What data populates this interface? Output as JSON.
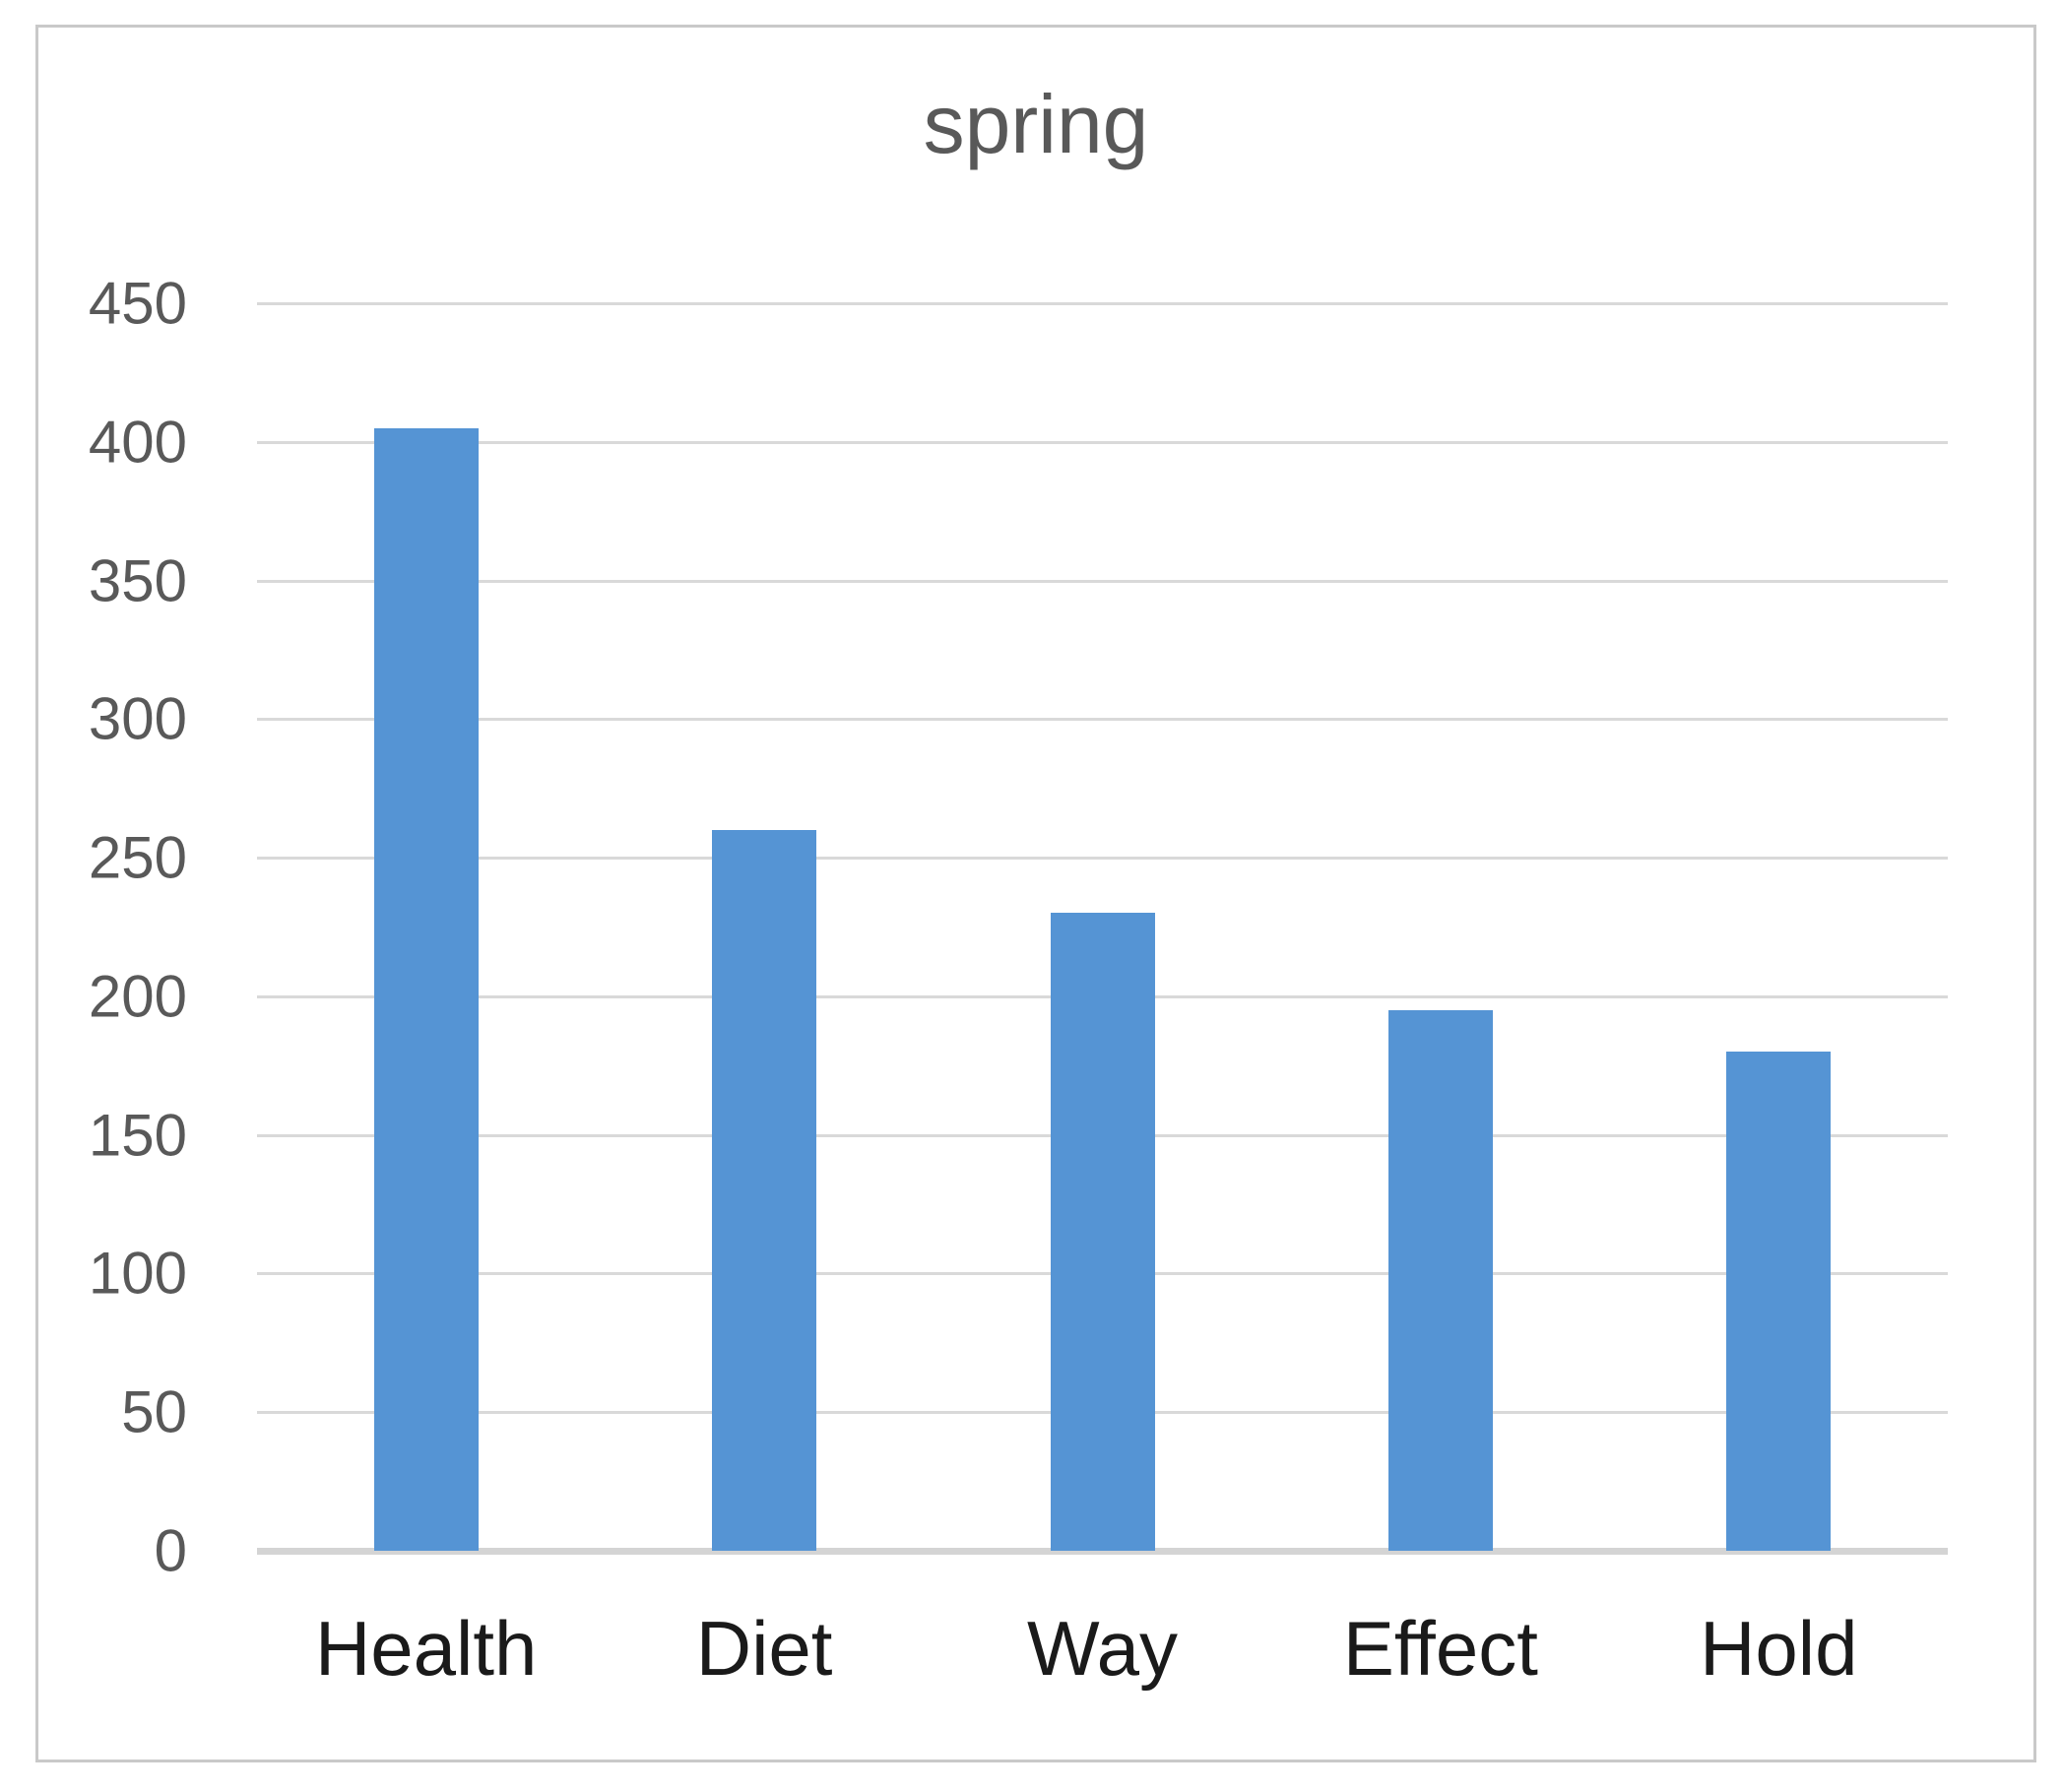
{
  "chart_data": {
    "type": "bar",
    "title": "spring",
    "categories": [
      "Health",
      "Diet",
      "Way",
      "Effect",
      "Hold"
    ],
    "values": [
      405,
      260,
      230,
      195,
      180
    ],
    "xlabel": "",
    "ylabel": "",
    "ylim": [
      0,
      450
    ],
    "y_ticks": [
      0,
      50,
      100,
      150,
      200,
      250,
      300,
      350,
      400,
      450
    ],
    "grid": "horizontal",
    "legend_position": "none",
    "colors": {
      "bar_fill": "#5594d4",
      "title_text": "#595959",
      "tick_label_text": "#595959",
      "category_label_text": "#1a1a1a",
      "gridline": "#d9d9d9",
      "axis_line": "#d4d4d4",
      "frame_border": "#c9c9c9",
      "background": "#ffffff"
    }
  }
}
